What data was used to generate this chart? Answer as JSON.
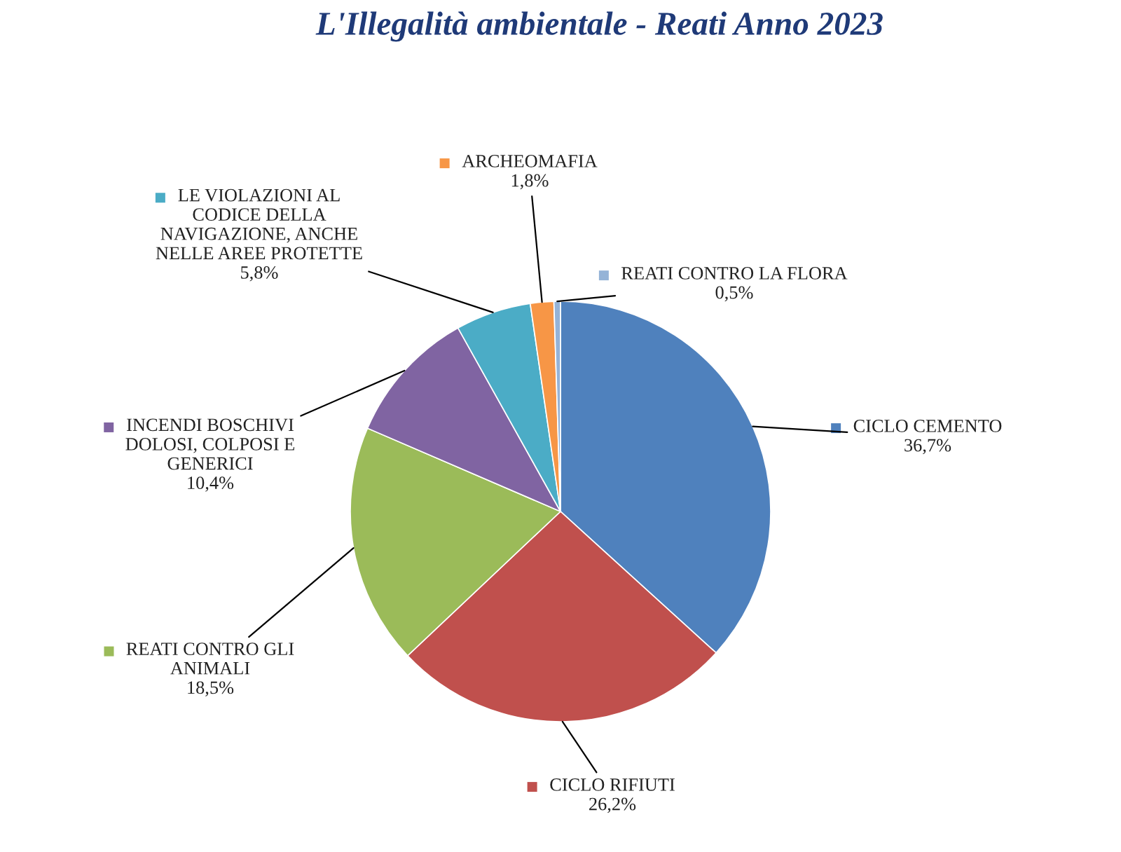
{
  "chart_data": {
    "type": "pie",
    "title": "L'Illegalità ambientale - Reati Anno 2023",
    "categories": [
      "CICLO CEMENTO",
      "CICLO RIFIUTI",
      "REATI CONTRO GLI ANIMALI",
      "INCENDI BOSCHIVI DOLOSI, COLPOSI E GENERICI",
      "LE VIOLAZIONI AL CODICE DELLA NAVIGAZIONE, ANCHE NELLE AREE PROTETTE",
      "ARCHEOMAFIA",
      "REATI CONTRO LA FLORA"
    ],
    "values": [
      36.7,
      26.2,
      18.5,
      10.4,
      5.8,
      1.8,
      0.5
    ],
    "value_labels": [
      "36,7%",
      "26,2%",
      "18,5%",
      "10,4%",
      "5,8%",
      "1,8%",
      "0,5%"
    ],
    "colors": [
      "#4f81bd",
      "#c0504d",
      "#9bbb59",
      "#8064a2",
      "#4bacc6",
      "#f79646",
      "#95b3d7"
    ],
    "legend": true
  }
}
